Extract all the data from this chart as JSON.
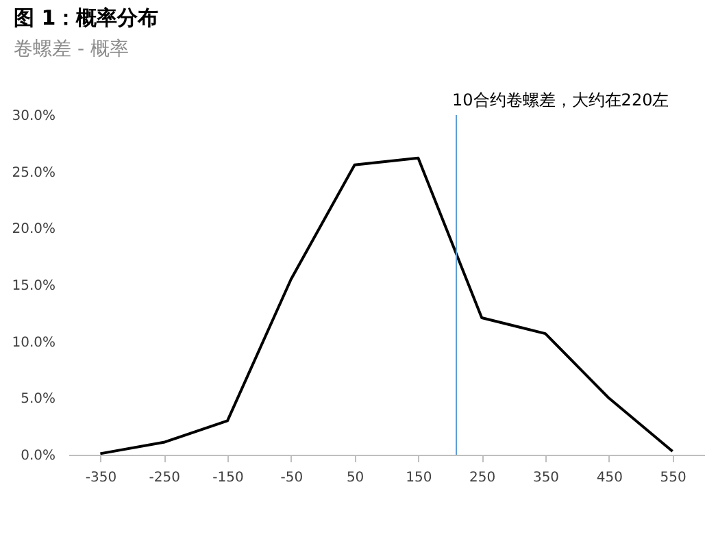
{
  "chart_data": {
    "type": "line",
    "title": "图 1：概率分布",
    "subtitle": "卷螺差 - 概率",
    "x": [
      -350,
      -250,
      -150,
      -50,
      50,
      150,
      250,
      350,
      450,
      550
    ],
    "series": [
      {
        "color": "#000000",
        "values": [
          0.1,
          1.1,
          3.0,
          15.5,
          25.6,
          26.2,
          12.1,
          10.7,
          5.0,
          0.3
        ]
      }
    ],
    "xlim": [
      -400,
      600
    ],
    "xticks": [
      -350,
      -250,
      -150,
      -50,
      50,
      150,
      250,
      350,
      450,
      550
    ],
    "ylim": [
      0,
      30
    ],
    "yticks": [
      {
        "value": 0,
        "label": "0.0%"
      },
      {
        "value": 5,
        "label": "5.0%"
      },
      {
        "value": 10,
        "label": "10.0%"
      },
      {
        "value": 15,
        "label": "15.0%"
      },
      {
        "value": 20,
        "label": "20.0%"
      },
      {
        "value": 25,
        "label": "25.0%"
      },
      {
        "value": 30,
        "label": "30.0%"
      }
    ],
    "ref_lines": [
      {
        "axis": "x",
        "value": 210,
        "label": "10合约卷螺差，大约在220左",
        "color": "#5b9bd5"
      }
    ],
    "grid": false,
    "marker": "none",
    "line_style": "solid"
  }
}
